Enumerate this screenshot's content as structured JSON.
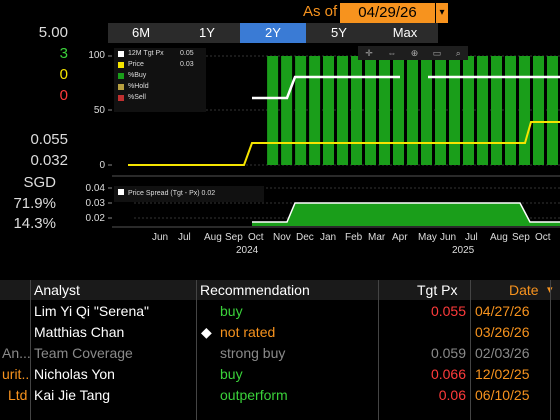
{
  "header": {
    "as_of_label": "As of",
    "as_of_date": "04/29/26"
  },
  "tabs": [
    {
      "label": "6M",
      "active": false
    },
    {
      "label": "1Y",
      "active": false
    },
    {
      "label": "2Y",
      "active": true
    },
    {
      "label": "5Y",
      "active": false
    },
    {
      "label": "Max",
      "active": false
    }
  ],
  "left_stats": {
    "consensus": "5.00",
    "buy": "3",
    "hold": "0",
    "sell": "0",
    "tgt_px": "0.055",
    "price": "0.032",
    "currency": "SGD",
    "pct_buy": "71.9%",
    "pct_other": "14.3%"
  },
  "colors": {
    "orange": "#f7931e",
    "buy_green": "#1a9e1a",
    "yellow": "#f5e400",
    "red": "#e02020"
  },
  "legend_top": [
    {
      "label": "12M Tgt Px",
      "value": "0.05",
      "color": "#ffffff"
    },
    {
      "label": "Price",
      "value": "0.03",
      "color": "#f5e400"
    },
    {
      "label": "%Buy",
      "value": "",
      "color": "#1a9e1a"
    },
    {
      "label": "%Hold",
      "value": "",
      "color": "#b8a040"
    },
    {
      "label": "%Sell",
      "value": "",
      "color": "#c03030"
    }
  ],
  "legend_bottom": {
    "label": "Price Spread (Tgt - Px)",
    "value": "0.02"
  },
  "chart_data": [
    {
      "type": "bar",
      "y_ticks": [
        "100",
        "50",
        "0"
      ],
      "ylim": [
        0,
        100
      ],
      "buy_bar_start_fraction": 0.31,
      "buy_bar_count": 21,
      "buy_value": 100
    },
    {
      "type": "area",
      "y_ticks": [
        "0.04",
        "0.03",
        "0.02"
      ],
      "ylim": [
        0.015,
        0.045
      ]
    }
  ],
  "x_axis": {
    "ticks": [
      "Jun",
      "Jul",
      "Aug",
      "Sep",
      "Oct",
      "Nov",
      "Dec",
      "Jan",
      "Feb",
      "Mar",
      "Apr",
      "May",
      "Jun",
      "Jul",
      "Aug",
      "Sep",
      "Oct"
    ],
    "years": [
      "2024",
      "2025"
    ]
  },
  "grid": {
    "headers": {
      "firm": "",
      "analyst": "Analyst",
      "rec": "Recommendation",
      "tgt": "Tgt Px",
      "date": "Date"
    },
    "rows": [
      {
        "firm": "",
        "analyst": "Lim Yi Qi \"Serena\"",
        "rec": "buy",
        "rec_color": "#3ad13a",
        "tgt": "0.055",
        "tgt_color": "#ff3b3b",
        "date": "04/27/26",
        "date_color": "#f7931e",
        "marker": ""
      },
      {
        "firm": "",
        "analyst": "Matthias Chan",
        "rec": "not rated",
        "rec_color": "#f7931e",
        "tgt": "",
        "tgt_color": "#ff3b3b",
        "date": "03/26/26",
        "date_color": "#f7931e",
        "marker": "◆"
      },
      {
        "firm": "An...",
        "analyst": "Team Coverage",
        "rec": "strong buy",
        "rec_color": "#8a8a8a",
        "tgt": "0.059",
        "tgt_color": "#8a8a8a",
        "date": "02/03/26",
        "date_color": "#8a8a8a",
        "marker": "",
        "dim": true
      },
      {
        "firm": "urit...",
        "analyst": "Nicholas Yon",
        "rec": "buy",
        "rec_color": "#3ad13a",
        "tgt": "0.066",
        "tgt_color": "#ff3b3b",
        "date": "12/02/25",
        "date_color": "#f7931e",
        "marker": ""
      },
      {
        "firm": "Ltd",
        "analyst": "Kai Jie Tang",
        "rec": "outperform",
        "rec_color": "#3ad13a",
        "tgt": "0.06",
        "tgt_color": "#ff3b3b",
        "date": "06/10/25",
        "date_color": "#f7931e",
        "marker": ""
      }
    ]
  }
}
